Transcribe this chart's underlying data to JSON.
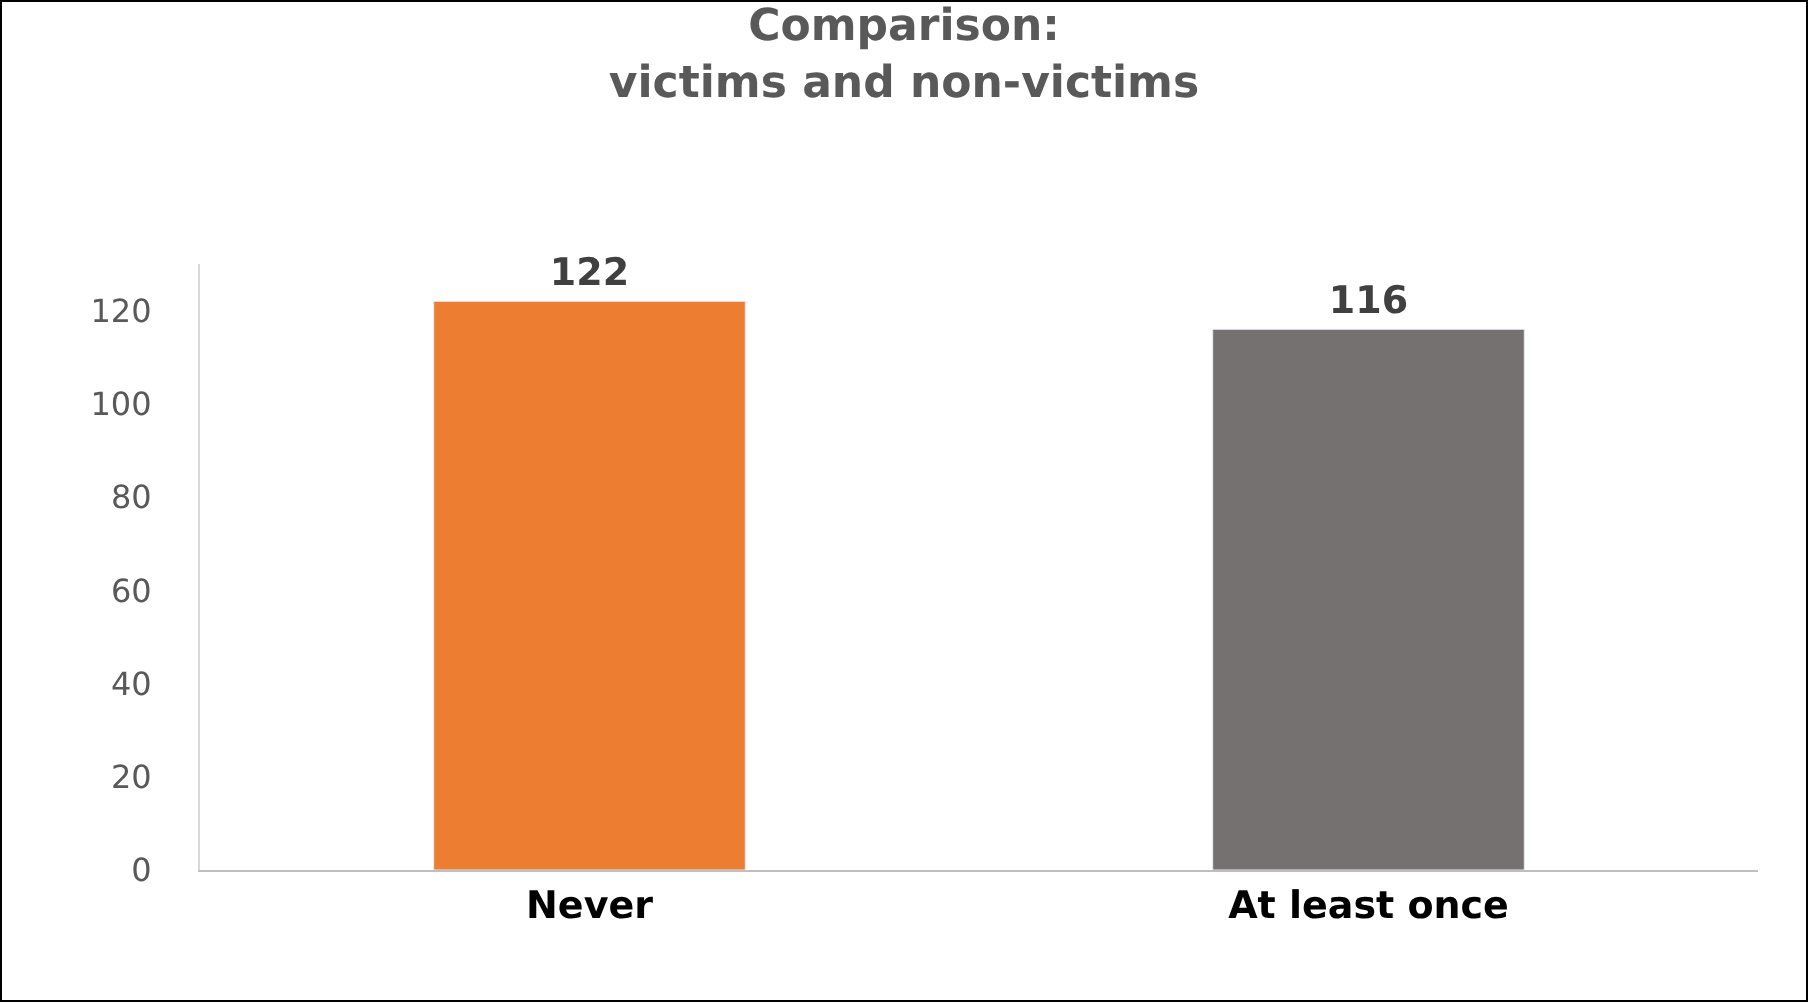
{
  "chart_data": {
    "type": "bar",
    "title": "Comparison:\nvictims and non-victims",
    "categories": [
      "Never",
      "At least once"
    ],
    "values": [
      122,
      116
    ],
    "colors": [
      "#ed7d31",
      "#767171"
    ],
    "ylim": [
      0,
      130
    ],
    "yticks": [
      0,
      20,
      40,
      60,
      80,
      100,
      120
    ],
    "grid": false,
    "data_labels": true
  }
}
